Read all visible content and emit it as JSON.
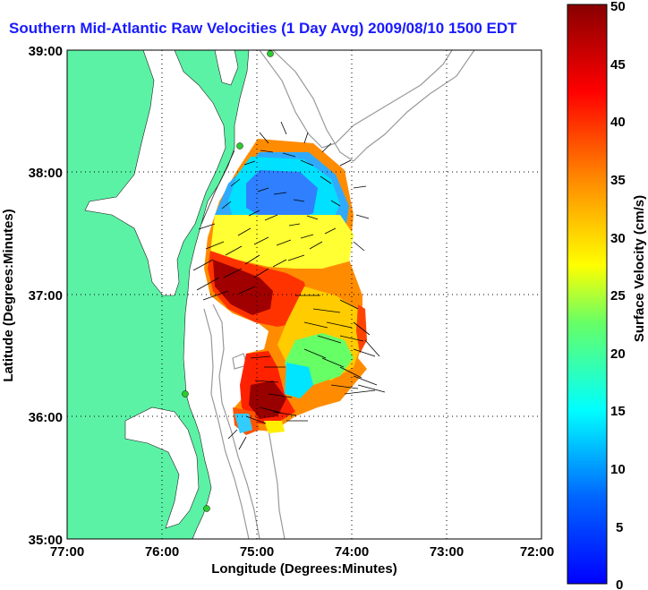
{
  "title": "Southern Mid-Atlantic Raw Velocities (1 Day Avg) 2009/08/10 1500 EDT",
  "xlabel": "Longitude (Degrees:Minutes)",
  "ylabel": "Latitude (Degrees:Minutes)",
  "x_ticks": [
    "77:00",
    "76:00",
    "75:00",
    "74:00",
    "73:00",
    "72:00"
  ],
  "y_ticks": [
    "39:00",
    "38:00",
    "37:00",
    "36:00",
    "35:00"
  ],
  "colorbar": {
    "label": "Surface Velocity (cm/s)",
    "ticks": [
      "50",
      "45",
      "40",
      "35",
      "30",
      "25",
      "20",
      "15",
      "10",
      "5",
      "0"
    ],
    "range": [
      0,
      50
    ]
  },
  "colors": {
    "land": "#5cf2a6",
    "ocean": "#ffffff",
    "title": "#1a1aff",
    "station": "#2ecc2e"
  }
}
